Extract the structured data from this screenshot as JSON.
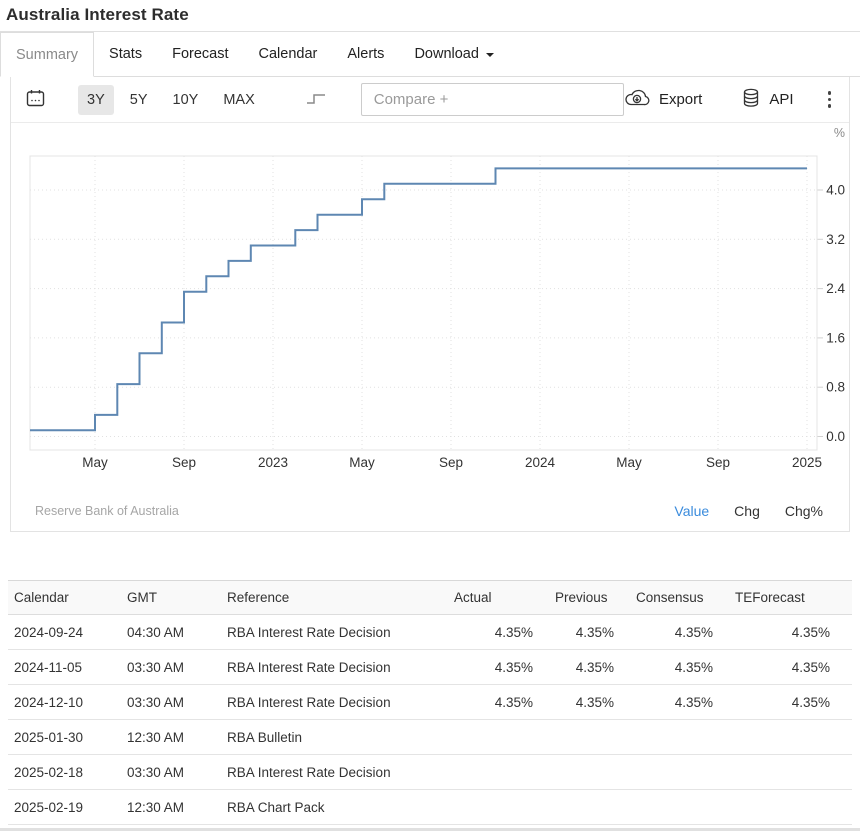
{
  "header": {
    "title": "Australia Interest Rate"
  },
  "tabs": [
    {
      "label": "Summary",
      "active": true
    },
    {
      "label": "Stats"
    },
    {
      "label": "Forecast"
    },
    {
      "label": "Calendar"
    },
    {
      "label": "Alerts"
    },
    {
      "label": "Download",
      "caret": true
    }
  ],
  "toolbar": {
    "ranges": [
      {
        "label": "3Y",
        "active": true
      },
      {
        "label": "5Y"
      },
      {
        "label": "10Y"
      },
      {
        "label": "MAX"
      }
    ],
    "compare_placeholder": "Compare +",
    "export_label": "Export",
    "api_label": "API"
  },
  "chart_data": {
    "type": "line",
    "subtype": "step",
    "title": "Australia Interest Rate",
    "unit": "%",
    "source": "Reserve Bank of Australia",
    "line_color": "#5e87b2",
    "grid": true,
    "ylim": [
      0,
      4.8
    ],
    "x_range": [
      "2022-02",
      "2025-01"
    ],
    "y_ticks": [
      "0.0",
      "0.8",
      "1.6",
      "2.4",
      "3.2",
      "4.0"
    ],
    "x_ticks": [
      {
        "date": "2022-05",
        "label": "May"
      },
      {
        "date": "2022-09",
        "label": "Sep"
      },
      {
        "date": "2023-01",
        "label": "2023"
      },
      {
        "date": "2023-05",
        "label": "May"
      },
      {
        "date": "2023-09",
        "label": "Sep"
      },
      {
        "date": "2024-01",
        "label": "2024"
      },
      {
        "date": "2024-05",
        "label": "May"
      },
      {
        "date": "2024-09",
        "label": "Sep"
      },
      {
        "date": "2025-01",
        "label": "2025"
      }
    ],
    "series": [
      {
        "name": "Australia Interest Rate",
        "change_points": [
          [
            "2022-02",
            0.1
          ],
          [
            "2022-05",
            0.35
          ],
          [
            "2022-06",
            0.85
          ],
          [
            "2022-07",
            1.35
          ],
          [
            "2022-08",
            1.85
          ],
          [
            "2022-09",
            2.35
          ],
          [
            "2022-10",
            2.6
          ],
          [
            "2022-11",
            2.85
          ],
          [
            "2022-12",
            3.1
          ],
          [
            "2023-02",
            3.35
          ],
          [
            "2023-03",
            3.6
          ],
          [
            "2023-05",
            3.85
          ],
          [
            "2023-06",
            4.1
          ],
          [
            "2023-11",
            4.35
          ]
        ],
        "end_date": "2024-12",
        "end_value": 4.35
      }
    ]
  },
  "chart_footer": {
    "links": [
      {
        "label": "Value",
        "active": true
      },
      {
        "label": "Chg"
      },
      {
        "label": "Chg%"
      }
    ],
    "active_color": "#3a8bdc"
  },
  "table": {
    "columns": [
      "Calendar",
      "GMT",
      "Reference",
      "Actual",
      "Previous",
      "Consensus",
      "TEForecast"
    ],
    "rows": [
      [
        "2024-09-24",
        "04:30 AM",
        "RBA Interest Rate Decision",
        "4.35%",
        "4.35%",
        "4.35%",
        "4.35%"
      ],
      [
        "2024-11-05",
        "03:30 AM",
        "RBA Interest Rate Decision",
        "4.35%",
        "4.35%",
        "4.35%",
        "4.35%"
      ],
      [
        "2024-12-10",
        "03:30 AM",
        "RBA Interest Rate Decision",
        "4.35%",
        "4.35%",
        "4.35%",
        "4.35%"
      ],
      [
        "2025-01-30",
        "12:30 AM",
        "RBA Bulletin",
        "",
        "",
        "",
        ""
      ],
      [
        "2025-02-18",
        "03:30 AM",
        "RBA Interest Rate Decision",
        "",
        "",
        "",
        ""
      ],
      [
        "2025-02-19",
        "12:30 AM",
        "RBA Chart Pack",
        "",
        "",
        "",
        ""
      ]
    ]
  }
}
